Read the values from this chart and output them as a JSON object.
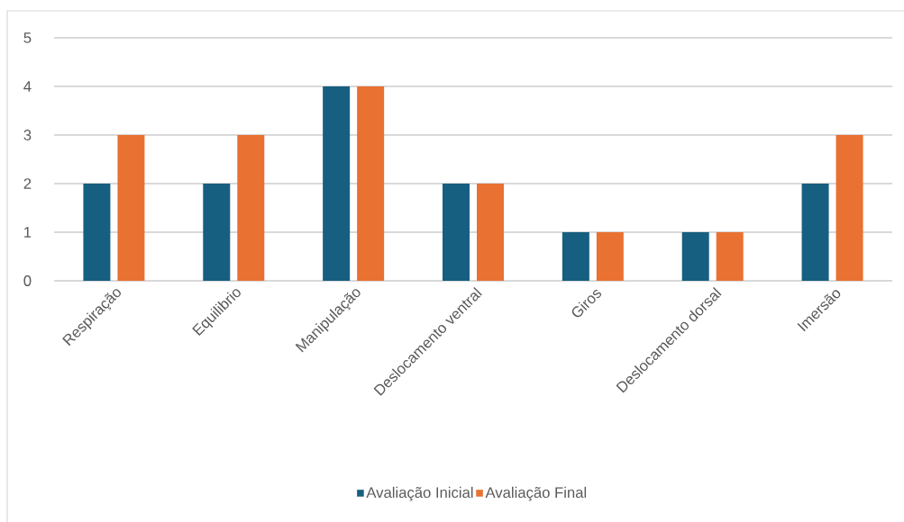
{
  "chart_data": {
    "type": "bar",
    "categories": [
      "Respiração",
      "Equilibrio",
      "Manipulação",
      "Deslocamento ventral",
      "Giros",
      "Deslocamento dorsal",
      "Imersão"
    ],
    "series": [
      {
        "name": "Avaliação Inicial",
        "color": "#175f80",
        "values": [
          2,
          2,
          4,
          2,
          1,
          1,
          2
        ]
      },
      {
        "name": "Avaliação Final",
        "color": "#e97132",
        "values": [
          3,
          3,
          4,
          2,
          1,
          1,
          3
        ]
      }
    ],
    "ylim": [
      0,
      5
    ],
    "yticks": [
      0,
      1,
      2,
      3,
      4,
      5
    ],
    "grid": "y",
    "legend": "bottom"
  }
}
